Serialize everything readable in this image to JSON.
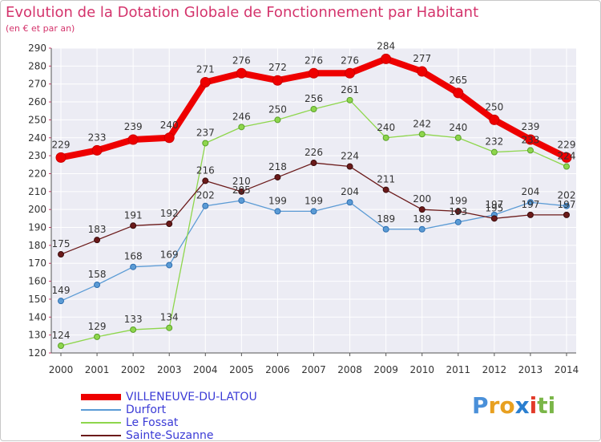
{
  "chart_data": {
    "type": "line",
    "title": "Evolution de la Dotation Globale de Fonctionnement par Habitant",
    "subtitle": "(en € et par an)",
    "x": [
      "2000",
      "2001",
      "2002",
      "2003",
      "2004",
      "2005",
      "2006",
      "2007",
      "2008",
      "2009",
      "2010",
      "2011",
      "2012",
      "2013",
      "2014"
    ],
    "ylim": [
      120,
      290
    ],
    "yticks": [
      120,
      130,
      140,
      150,
      160,
      170,
      180,
      190,
      200,
      210,
      220,
      230,
      240,
      250,
      260,
      270,
      280,
      290
    ],
    "grid": true,
    "series": [
      {
        "name": "VILLENEUVE-DU-LATOU",
        "color": "#ee0000",
        "values": [
          229,
          233,
          239,
          240,
          271,
          276,
          272,
          276,
          276,
          284,
          277,
          265,
          250,
          239,
          229
        ]
      },
      {
        "name": "Durfort",
        "color": "#5b9bd5",
        "values": [
          149,
          158,
          168,
          169,
          202,
          205,
          199,
          199,
          204,
          189,
          189,
          193,
          197,
          204,
          202
        ]
      },
      {
        "name": "Le Fossat",
        "color": "#8ed64c",
        "values": [
          124,
          129,
          133,
          134,
          237,
          246,
          250,
          256,
          261,
          240,
          242,
          240,
          232,
          233,
          224
        ]
      },
      {
        "name": "Sainte-Suzanne",
        "color": "#6b1a1a",
        "values": [
          175,
          183,
          191,
          192,
          216,
          210,
          218,
          226,
          224,
          211,
          200,
          199,
          195,
          197,
          197
        ]
      }
    ],
    "data_labels": [
      [
        "229",
        "233",
        "239",
        "240",
        "271",
        "276",
        "272",
        "276",
        "276",
        "284",
        "277",
        "265",
        "250",
        "239",
        "229"
      ],
      [
        "149",
        "158",
        "168",
        "169",
        "202",
        "205",
        "199",
        "199",
        "204",
        "189",
        "189",
        "193",
        "197",
        "204",
        "202"
      ],
      [
        "124",
        "129",
        "133",
        "134",
        "237",
        "246",
        "250",
        "256",
        "261",
        "240",
        "242",
        "240",
        "232",
        "233",
        "224"
      ],
      [
        "175",
        "183",
        "191",
        "192",
        "216",
        "210",
        "218",
        "226",
        "224",
        "211",
        "200",
        "199",
        "195",
        "197",
        "197"
      ]
    ]
  },
  "logo": {
    "text": "Proxiti",
    "letters": [
      "P",
      "r",
      "o",
      "x",
      "i",
      "t",
      "i"
    ],
    "colors": [
      "#4a90d9",
      "#e8a020",
      "#e8a020",
      "#2a7fd0",
      "#e23a2a",
      "#7ab648",
      "#7ab648"
    ]
  }
}
